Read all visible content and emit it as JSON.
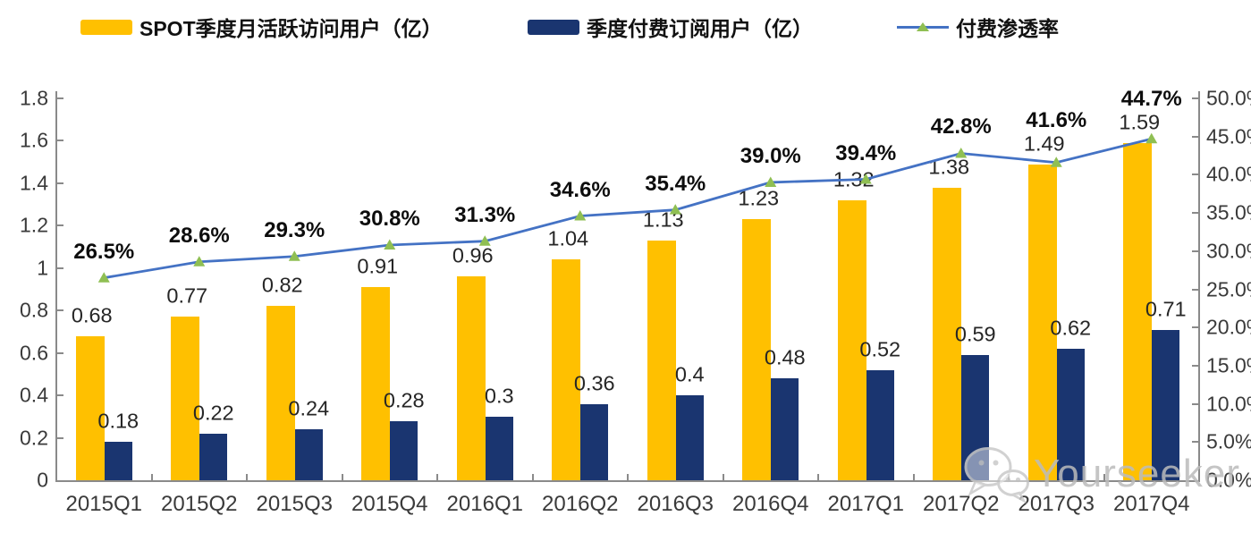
{
  "legend": {
    "items": [
      {
        "label": "SPOT季度月活跃访问用户（亿）",
        "type": "bar"
      },
      {
        "label": "季度付费订阅用户（亿）",
        "type": "bar"
      },
      {
        "label": "付费渗透率",
        "type": "line"
      }
    ]
  },
  "chart_data": {
    "type": "bar+line",
    "categories": [
      "2015Q1",
      "2015Q2",
      "2015Q3",
      "2015Q4",
      "2016Q1",
      "2016Q2",
      "2016Q3",
      "2016Q4",
      "2017Q1",
      "2017Q2",
      "2017Q3",
      "2017Q4"
    ],
    "series": [
      {
        "name": "SPOT季度月活跃访问用户（亿）",
        "type": "bar",
        "axis": "left",
        "color": "#FFC000",
        "values": [
          0.68,
          0.77,
          0.82,
          0.91,
          0.96,
          1.04,
          1.13,
          1.23,
          1.32,
          1.38,
          1.49,
          1.59
        ],
        "labels": [
          "0.68",
          "0.77",
          "0.82",
          "0.91",
          "0.96",
          "1.04",
          "1.13",
          "1.23",
          "1.32",
          "1.38",
          "1.49",
          "1.59"
        ]
      },
      {
        "name": "季度付费订阅用户（亿）",
        "type": "bar",
        "axis": "left",
        "color": "#1A3570",
        "values": [
          0.18,
          0.22,
          0.24,
          0.28,
          0.3,
          0.36,
          0.4,
          0.48,
          0.52,
          0.59,
          0.62,
          0.71
        ],
        "labels": [
          "0.18",
          "0.22",
          "0.24",
          "0.28",
          "0.3",
          "0.36",
          "0.4",
          "0.48",
          "0.52",
          "0.59",
          "0.62",
          "0.71"
        ]
      },
      {
        "name": "付费渗透率",
        "type": "line",
        "axis": "right",
        "color": "#4472C4",
        "marker": "triangle",
        "marker_color": "#8FBF53",
        "values": [
          26.5,
          28.6,
          29.3,
          30.8,
          31.3,
          34.6,
          35.4,
          39.0,
          39.4,
          42.8,
          41.6,
          44.7
        ],
        "labels": [
          "26.5%",
          "28.6%",
          "29.3%",
          "30.8%",
          "31.3%",
          "34.6%",
          "35.4%",
          "39.0%",
          "39.4%",
          "42.8%",
          "41.6%",
          "44.7%"
        ]
      }
    ],
    "left_axis": {
      "min": 0,
      "max": 1.8,
      "step": 0.2,
      "ticks": [
        "0",
        "0.2",
        "0.4",
        "0.6",
        "0.8",
        "1",
        "1.2",
        "1.4",
        "1.6",
        "1.8"
      ]
    },
    "right_axis": {
      "min": 0,
      "max": 50,
      "step": 5,
      "ticks": [
        "0.0%",
        "5.0%",
        "10.0%",
        "15.0%",
        "20.0%",
        "25.0%",
        "30.0%",
        "35.0%",
        "40.0%",
        "45.0%",
        "50.0%"
      ]
    },
    "grid": false,
    "legend_position": "top",
    "title": ""
  },
  "watermark": {
    "text": "Yourseeker",
    "icon": "wechat-icon"
  }
}
